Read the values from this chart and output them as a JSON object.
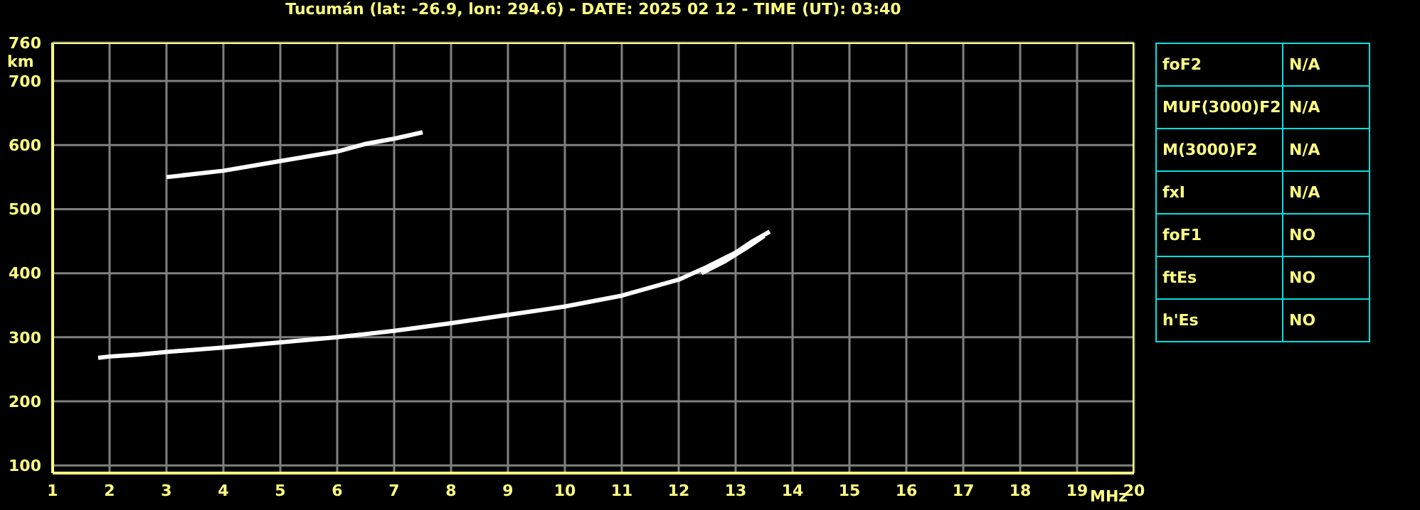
{
  "chart_data": [
    {
      "type": "line",
      "title": "Tucumán (lat: -26.9, lon: 294.6) - DATE: 2025 02 12 - TIME (UT): 03:40",
      "xlabel": "MHz",
      "ylabel": "km",
      "marker": "none",
      "line_style": "solid",
      "grid": true,
      "series": [
        {
          "color": "#ffffff",
          "x": [
            1.8,
            2,
            2.5,
            3,
            4,
            5,
            6,
            7,
            8,
            9,
            10,
            11,
            12,
            12.5,
            13,
            13.3,
            13.6
          ],
          "values": [
            268,
            270,
            273,
            277,
            284,
            292,
            300,
            310,
            322,
            335,
            348,
            365,
            390,
            410,
            432,
            450,
            465
          ]
        },
        {
          "color": "#ffffff",
          "x": [
            12.4,
            12.8,
            13.2,
            13.5
          ],
          "values": [
            400,
            418,
            440,
            458
          ]
        },
        {
          "color": "#ffffff",
          "x": [
            3,
            4,
            5,
            6,
            6.5,
            7,
            7.5
          ],
          "values": [
            550,
            560,
            575,
            590,
            602,
            610,
            620
          ]
        }
      ],
      "xlim": [
        1,
        20
      ],
      "xticks": [
        1,
        2,
        3,
        4,
        5,
        6,
        7,
        8,
        9,
        10,
        11,
        12,
        13,
        14,
        15,
        16,
        17,
        18,
        19,
        20
      ],
      "ylim": [
        88,
        760
      ],
      "yticks": [
        100,
        200,
        300,
        400,
        500,
        600,
        700,
        760
      ]
    },
    {
      "type": "other",
      "annotations": [
        "foF2",
        "N/A",
        "MUF(3000)F2",
        "N/A",
        "M(3000)F2",
        "N/A",
        "fxI",
        "N/A",
        "foF1",
        "NO",
        "ftEs",
        "NO",
        "h'Es",
        "NO"
      ]
    }
  ]
}
